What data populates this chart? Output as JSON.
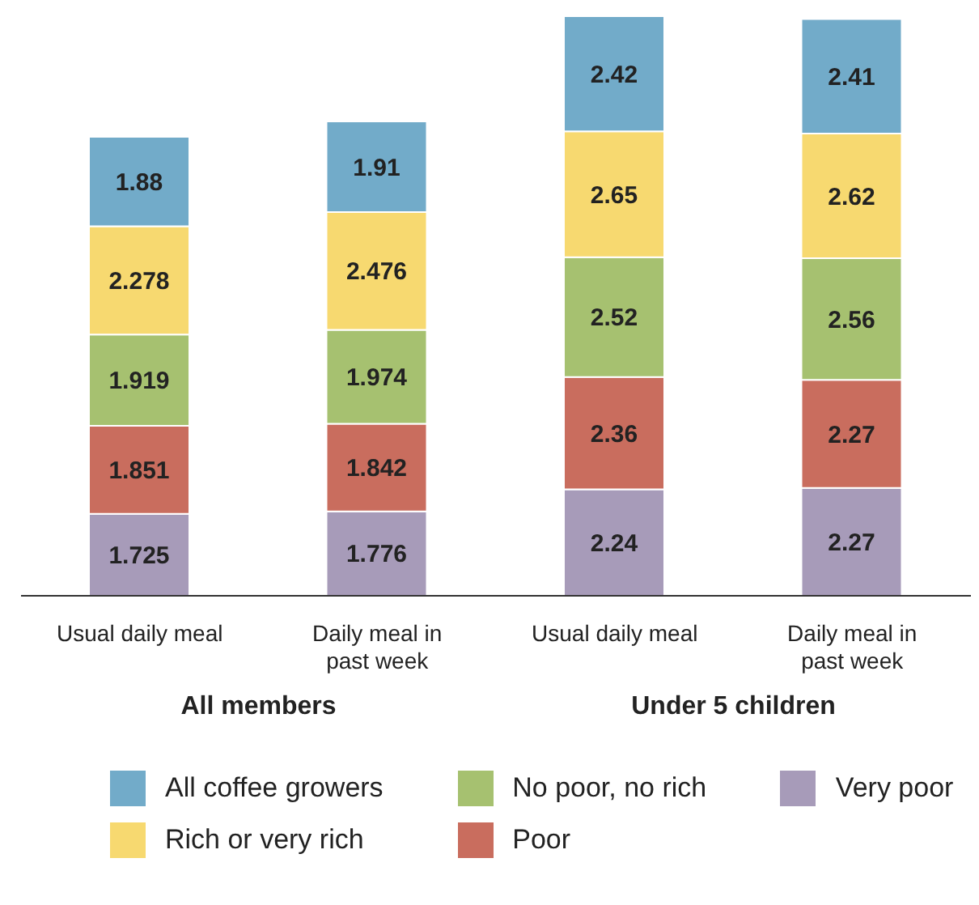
{
  "chart_data": {
    "type": "bar",
    "stacked": true,
    "data_labels": true,
    "legend": "bottom",
    "categories": [
      "Usual daily meal",
      "Daily meal in past week",
      "Usual daily meal",
      "Daily meal in past week"
    ],
    "annotations": [
      "All members",
      "Under 5 children"
    ],
    "series": [
      {
        "name": "Very poor",
        "color": "#a79bb9",
        "values": [
          1.725,
          1.776,
          2.24,
          2.27
        ]
      },
      {
        "name": "Poor",
        "color": "#c96d5e",
        "values": [
          1.851,
          1.842,
          2.36,
          2.27
        ]
      },
      {
        "name": "No poor, no rich",
        "color": "#a6c170",
        "values": [
          1.919,
          1.974,
          2.52,
          2.56
        ]
      },
      {
        "name": "Rich or very rich",
        "color": "#f7d970",
        "values": [
          2.278,
          2.476,
          2.65,
          2.62
        ]
      },
      {
        "name": "All coffee growers",
        "color": "#72abc9",
        "values": [
          1.88,
          1.91,
          2.42,
          2.41
        ]
      }
    ]
  }
}
